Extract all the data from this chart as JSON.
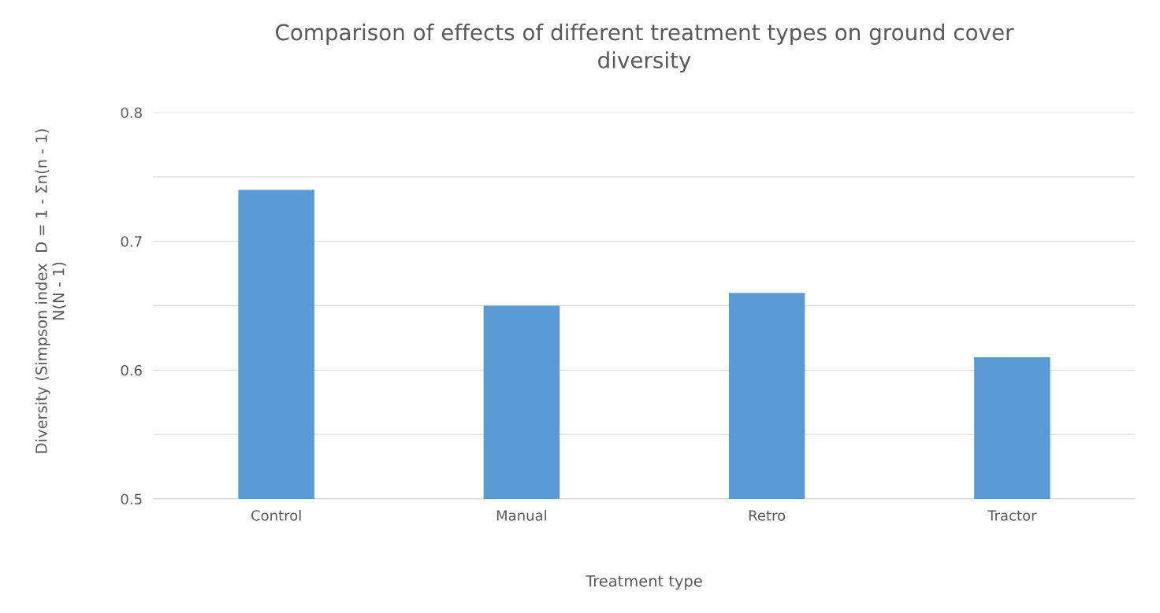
{
  "chart_data": {
    "type": "bar",
    "title": "Comparison of effects of different treatment types on ground cover\ndiversity",
    "xlabel": "Treatment type",
    "ylabel": "Diversity (Simpson index  D = 1 - Σn(n - 1)\nN(N - 1)",
    "categories": [
      "Control",
      "Manual",
      "Retro",
      "Tractor"
    ],
    "values": [
      0.74,
      0.65,
      0.66,
      0.61
    ],
    "color": "#5b9bd5",
    "ylim": [
      0.5,
      0.8
    ],
    "yticks": [
      0.5,
      {
        "value": 0.55,
        "label": null
      },
      0.6,
      {
        "value": 0.65,
        "label": null
      },
      0.7,
      {
        "value": 0.75,
        "label": null
      },
      0.8
    ],
    "grid": "y"
  }
}
